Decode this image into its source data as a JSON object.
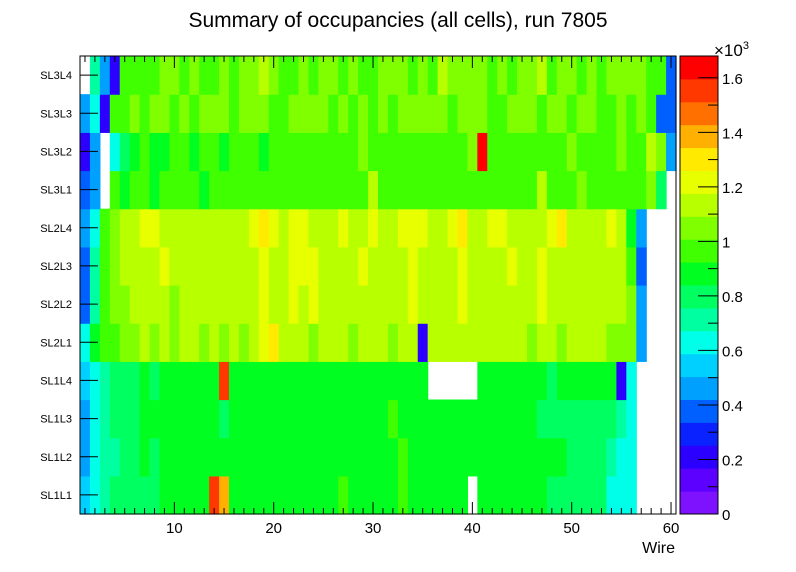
{
  "chart_data": {
    "type": "heatmap",
    "title": "Summary of occupancies (all cells),      run 7805",
    "xlabel": "Wire",
    "ylabel": "",
    "xlim": [
      0.5,
      60.5
    ],
    "x_ticks": [
      10,
      20,
      30,
      40,
      50,
      60
    ],
    "y_categories": [
      "SL1L1",
      "SL1L2",
      "SL1L3",
      "SL1L4",
      "SL2L1",
      "SL2L2",
      "SL2L3",
      "SL2L4",
      "SL3L1",
      "SL3L2",
      "SL3L3",
      "SL3L4"
    ],
    "colorbar": {
      "min": 0,
      "max": 1680,
      "ticks": [
        0,
        200,
        400,
        600,
        800,
        1000,
        1200,
        1400,
        1600
      ],
      "tick_labels": [
        "0",
        "0.2",
        "0.4",
        "0.6",
        "0.8",
        "1",
        "1.2",
        "1.4",
        "1.6"
      ],
      "exponent_label": "×10",
      "exponent_power": "3",
      "palette": [
        "#7e12ff",
        "#5c00ff",
        "#2c00ff",
        "#0a22ff",
        "#0060ff",
        "#00a0ff",
        "#00d0ff",
        "#00ffe8",
        "#00ffa0",
        "#00ff60",
        "#00ff20",
        "#40ff00",
        "#80ff00",
        "#b8ff00",
        "#e8ff00",
        "#ffea00",
        "#ffb000",
        "#ff7000",
        "#ff3800",
        "#ff0000"
      ]
    },
    "rows": {
      "SL1L1": [
        520,
        640,
        750,
        780,
        780,
        760,
        780,
        780,
        850,
        900,
        900,
        900,
        900,
        1550,
        1420,
        880,
        880,
        880,
        900,
        880,
        880,
        880,
        900,
        880,
        880,
        880,
        930,
        880,
        880,
        900,
        880,
        880,
        950,
        880,
        880,
        900,
        880,
        900,
        880,
        null,
        900,
        880,
        880,
        900,
        880,
        900,
        850,
        760,
        760,
        760,
        760,
        780,
        780,
        640,
        640,
        640,
        null,
        null,
        null,
        null
      ],
      "SL1L2": [
        500,
        600,
        700,
        750,
        780,
        800,
        850,
        800,
        850,
        880,
        880,
        880,
        900,
        900,
        880,
        880,
        880,
        900,
        880,
        880,
        900,
        880,
        880,
        880,
        900,
        880,
        880,
        880,
        880,
        880,
        900,
        880,
        950,
        880,
        880,
        900,
        880,
        880,
        900,
        880,
        880,
        900,
        880,
        900,
        880,
        880,
        880,
        850,
        850,
        800,
        800,
        800,
        780,
        750,
        640,
        640,
        null,
        null,
        null,
        null
      ],
      "SL1L3": [
        500,
        620,
        720,
        760,
        800,
        820,
        850,
        850,
        880,
        880,
        880,
        880,
        850,
        850,
        800,
        880,
        880,
        900,
        880,
        880,
        880,
        900,
        880,
        880,
        880,
        900,
        880,
        880,
        880,
        900,
        880,
        950,
        900,
        880,
        880,
        900,
        880,
        880,
        900,
        880,
        880,
        900,
        880,
        880,
        880,
        850,
        800,
        800,
        820,
        800,
        800,
        780,
        780,
        760,
        700,
        640,
        null,
        null,
        null,
        null
      ],
      "SL1L4": [
        520,
        640,
        740,
        780,
        800,
        800,
        850,
        820,
        850,
        880,
        880,
        880,
        900,
        880,
        1580,
        900,
        880,
        880,
        880,
        880,
        880,
        880,
        880,
        880,
        900,
        880,
        880,
        880,
        880,
        880,
        880,
        900,
        900,
        880,
        880,
        null,
        null,
        null,
        null,
        null,
        880,
        880,
        880,
        880,
        900,
        880,
        880,
        800,
        880,
        880,
        880,
        880,
        880,
        850,
        250,
        640,
        null,
        null,
        null,
        null
      ],
      "SL2L1": [
        640,
        900,
        950,
        1000,
        1050,
        1080,
        1100,
        1050,
        1100,
        1080,
        1100,
        1150,
        1050,
        1100,
        1080,
        1100,
        1050,
        1150,
        1200,
        1260,
        1150,
        1150,
        1100,
        1080,
        1150,
        1100,
        1150,
        1080,
        1100,
        1150,
        1100,
        1080,
        1100,
        1150,
        200,
        1100,
        1150,
        1150,
        1150,
        1100,
        1100,
        1150,
        1100,
        1100,
        1150,
        1080,
        1150,
        1100,
        1050,
        1100,
        1150,
        1100,
        1100,
        1050,
        1080,
        1050,
        500,
        null,
        null,
        null
      ],
      "SL2L2": [
        400,
        700,
        950,
        1050,
        1080,
        1100,
        1150,
        1100,
        1150,
        1080,
        1100,
        1150,
        1100,
        1100,
        1150,
        1100,
        1150,
        1150,
        1200,
        1150,
        1150,
        1200,
        1150,
        1180,
        1150,
        1100,
        1150,
        1120,
        1150,
        1150,
        1100,
        1100,
        1150,
        1250,
        1150,
        1100,
        1150,
        1150,
        1180,
        1150,
        1150,
        1100,
        1100,
        1150,
        1150,
        1100,
        1180,
        1150,
        1150,
        1100,
        1150,
        1100,
        1100,
        1100,
        1100,
        1050,
        450,
        null,
        null,
        null
      ],
      "SL2L3": [
        400,
        750,
        1000,
        1050,
        1100,
        1120,
        1150,
        1150,
        1200,
        1100,
        1150,
        1150,
        1100,
        1150,
        1100,
        1150,
        1150,
        1150,
        1200,
        1150,
        1150,
        1200,
        1200,
        1200,
        1150,
        1100,
        1150,
        1150,
        1200,
        1150,
        1150,
        1100,
        1150,
        1250,
        1150,
        1100,
        1150,
        1150,
        1200,
        1150,
        1150,
        1100,
        1150,
        1200,
        1150,
        1150,
        1200,
        1150,
        1150,
        1100,
        1150,
        1150,
        1100,
        1100,
        1100,
        1000,
        400,
        null,
        null,
        null
      ],
      "SL2L4": [
        500,
        650,
        1000,
        1080,
        1100,
        1150,
        1200,
        1200,
        1150,
        1100,
        1150,
        1150,
        1150,
        1100,
        1150,
        1150,
        1150,
        1200,
        1300,
        1200,
        1150,
        1200,
        1200,
        1150,
        1150,
        1100,
        1200,
        1150,
        1150,
        1200,
        1150,
        1150,
        1200,
        1200,
        1200,
        1150,
        1100,
        1200,
        1300,
        1150,
        1150,
        1200,
        1200,
        1150,
        1150,
        1100,
        1150,
        1200,
        1300,
        1150,
        1100,
        1150,
        1150,
        1200,
        1100,
        900,
        500,
        null,
        null,
        null
      ],
      "SL3L1": [
        400,
        500,
        null,
        950,
        900,
        950,
        950,
        900,
        1000,
        950,
        950,
        1000,
        900,
        950,
        1000,
        950,
        950,
        1000,
        1000,
        950,
        1000,
        1000,
        950,
        950,
        1000,
        950,
        1000,
        1000,
        950,
        1150,
        1000,
        950,
        1000,
        950,
        1000,
        1000,
        950,
        1000,
        1000,
        1000,
        950,
        1000,
        1000,
        1000,
        950,
        1000,
        1100,
        1000,
        950,
        1000,
        1050,
        1000,
        1000,
        950,
        1000,
        950,
        1000,
        1050,
        800,
        null
      ],
      "SL3L2": [
        250,
        500,
        null,
        650,
        800,
        900,
        950,
        900,
        900,
        950,
        1000,
        900,
        1000,
        950,
        900,
        1000,
        1000,
        950,
        900,
        1000,
        950,
        950,
        1000,
        950,
        950,
        1000,
        950,
        1000,
        1050,
        950,
        950,
        1000,
        1000,
        950,
        950,
        1000,
        950,
        1000,
        1000,
        1050,
        1660,
        1000,
        950,
        1000,
        1000,
        950,
        1000,
        950,
        950,
        1050,
        1000,
        950,
        950,
        1000,
        1050,
        1000,
        950,
        1100,
        1050,
        450
      ],
      "SL3L3": [
        420,
        600,
        220,
        1000,
        1000,
        1050,
        1000,
        1050,
        1050,
        1000,
        1050,
        1000,
        1050,
        1050,
        1050,
        1000,
        1050,
        1050,
        1050,
        1000,
        1000,
        1050,
        1050,
        1050,
        1050,
        1000,
        1050,
        1000,
        1050,
        1000,
        1050,
        1000,
        1050,
        1050,
        1050,
        1050,
        1050,
        1000,
        1050,
        1050,
        1050,
        1000,
        1000,
        1050,
        1050,
        1050,
        1000,
        1050,
        1050,
        1000,
        1050,
        1050,
        1000,
        1000,
        1050,
        1000,
        1050,
        1000,
        400,
        400
      ],
      "SL3L4": [
        null,
        700,
        500,
        220,
        950,
        950,
        1000,
        1000,
        1050,
        1050,
        1000,
        1050,
        950,
        1000,
        1050,
        1000,
        1050,
        1050,
        1100,
        1050,
        1000,
        950,
        1050,
        1000,
        1050,
        1050,
        1000,
        1050,
        1000,
        950,
        1050,
        1050,
        1050,
        1000,
        1050,
        1000,
        1100,
        1050,
        1050,
        1050,
        1050,
        950,
        1050,
        1000,
        1050,
        1050,
        1100,
        1000,
        1050,
        1050,
        950,
        1050,
        1000,
        1050,
        1050,
        1050,
        1050,
        1000,
        1000,
        400
      ]
    }
  }
}
